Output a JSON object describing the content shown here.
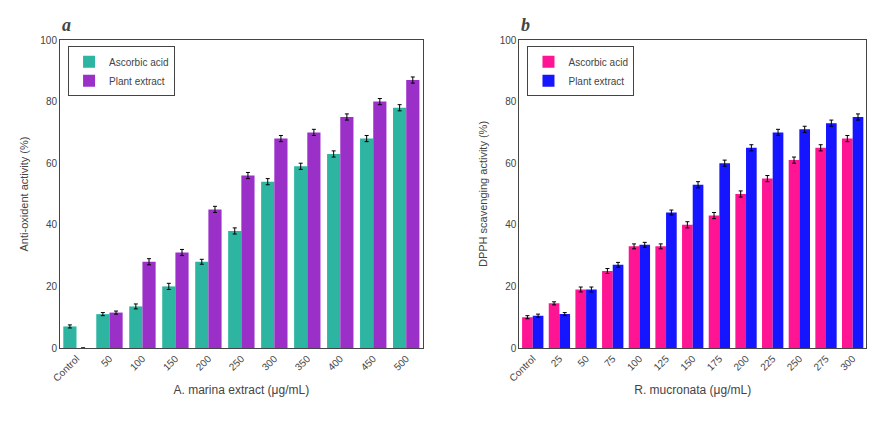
{
  "chart_data": [
    {
      "type": "bar",
      "title": "a",
      "categories": [
        "Control",
        "50",
        "100",
        "150",
        "200",
        "250",
        "300",
        "350",
        "400",
        "450",
        "500"
      ],
      "series": [
        {
          "name": "Ascorbic acid",
          "color": "#2db5a2",
          "values": [
            7,
            11,
            13.5,
            20,
            28,
            38,
            54,
            59,
            63,
            68,
            78
          ],
          "errors": [
            0.5,
            0.5,
            0.8,
            1.0,
            0.8,
            1.0,
            1.0,
            1.0,
            1.0,
            1.0,
            1.0
          ]
        },
        {
          "name": "Plant extract",
          "color": "#9b30c8",
          "values": [
            0,
            11.5,
            28,
            31,
            45,
            56,
            68,
            70,
            75,
            80,
            87
          ],
          "errors": [
            0,
            0.5,
            1.0,
            1.0,
            1.0,
            1.0,
            1.0,
            1.0,
            1.0,
            1.0,
            1.0
          ]
        }
      ],
      "xlabel": "A. marina extract (μg/mL)",
      "ylabel": "Anti-oxident activity (%)",
      "ylim": [
        0,
        100
      ],
      "yticks": [
        0,
        20,
        40,
        60,
        80,
        100
      ],
      "grid": false,
      "legend": "upper left"
    },
    {
      "type": "bar",
      "title": "b",
      "categories": [
        "Control",
        "25",
        "50",
        "75",
        "100",
        "125",
        "150",
        "175",
        "200",
        "225",
        "250",
        "275",
        "300"
      ],
      "series": [
        {
          "name": "Ascorbic acid",
          "color": "#ff1493",
          "values": [
            10,
            14.5,
            19,
            25,
            33,
            33,
            40,
            43,
            50,
            55,
            61,
            65,
            68
          ],
          "errors": [
            0.5,
            0.5,
            0.8,
            0.8,
            0.8,
            0.8,
            1.0,
            1.0,
            1.0,
            1.0,
            1.0,
            1.0,
            1.0
          ]
        },
        {
          "name": "Plant extract",
          "color": "#1515ff",
          "values": [
            10.5,
            11,
            19,
            27,
            33.5,
            44,
            53,
            60,
            65,
            70,
            71,
            73,
            75
          ],
          "errors": [
            0.5,
            0.5,
            0.8,
            0.8,
            0.8,
            0.8,
            1.0,
            1.0,
            1.0,
            1.0,
            1.0,
            1.0,
            1.0
          ]
        }
      ],
      "xlabel": "R. mucronata (μg/mL)",
      "ylabel": "DPPH scavenging activity (%)",
      "ylim": [
        0,
        100
      ],
      "yticks": [
        0,
        20,
        40,
        60,
        80,
        100
      ],
      "grid": false,
      "legend": "upper left"
    }
  ]
}
